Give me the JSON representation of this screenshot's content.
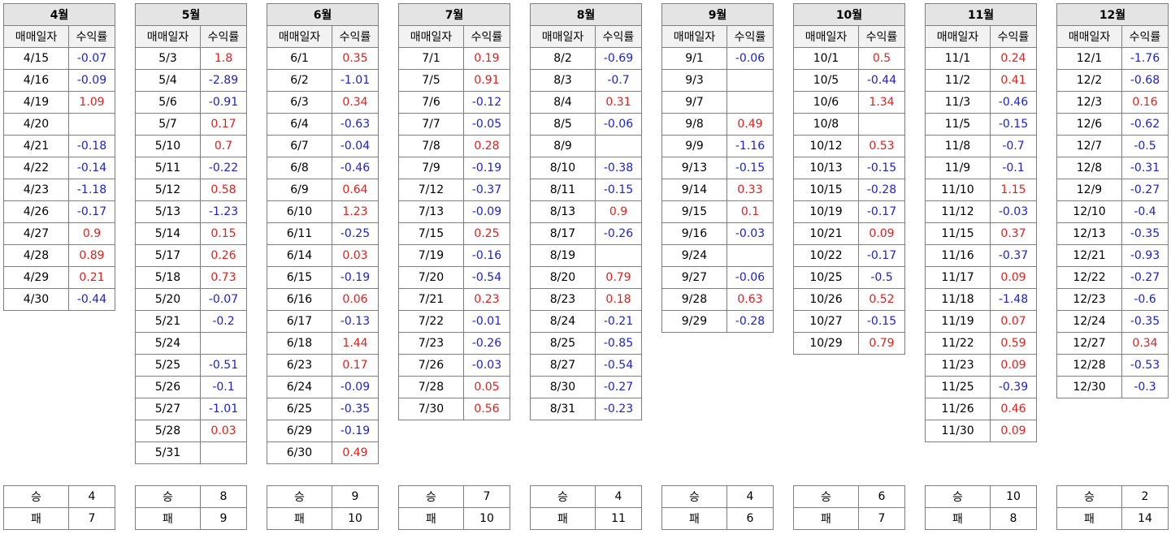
{
  "columns": {
    "date": "매매일자",
    "ret": "수익률"
  },
  "labels": {
    "win": "승",
    "loss": "패"
  },
  "colors": {
    "positive": "#e0201c",
    "negative": "#1c22d4",
    "title_bg": "#e4e4e4",
    "header_bg": "#f2f2f2"
  },
  "months": [
    {
      "title": "4월",
      "win": "4",
      "loss": "7",
      "rows": [
        [
          "4/15",
          "-0.07"
        ],
        [
          "4/16",
          "-0.09"
        ],
        [
          "4/19",
          "1.09"
        ],
        [
          "4/20",
          ""
        ],
        [
          "4/21",
          "-0.18"
        ],
        [
          "4/22",
          "-0.14"
        ],
        [
          "4/23",
          "-1.18"
        ],
        [
          "4/26",
          "-0.17"
        ],
        [
          "4/27",
          "0.9"
        ],
        [
          "4/28",
          "0.89"
        ],
        [
          "4/29",
          "0.21"
        ],
        [
          "4/30",
          "-0.44"
        ]
      ]
    },
    {
      "title": "5월",
      "win": "8",
      "loss": "9",
      "rows": [
        [
          "5/3",
          "1.8"
        ],
        [
          "5/4",
          "-2.89"
        ],
        [
          "5/6",
          "-0.91"
        ],
        [
          "5/7",
          "0.17"
        ],
        [
          "5/10",
          "0.7"
        ],
        [
          "5/11",
          "-0.22"
        ],
        [
          "5/12",
          "0.58"
        ],
        [
          "5/13",
          "-1.23"
        ],
        [
          "5/14",
          "0.15"
        ],
        [
          "5/17",
          "0.26"
        ],
        [
          "5/18",
          "0.73"
        ],
        [
          "5/20",
          "-0.07"
        ],
        [
          "5/21",
          "-0.2"
        ],
        [
          "5/24",
          ""
        ],
        [
          "5/25",
          "-0.51"
        ],
        [
          "5/26",
          "-0.1"
        ],
        [
          "5/27",
          "-1.01"
        ],
        [
          "5/28",
          "0.03"
        ],
        [
          "5/31",
          ""
        ]
      ]
    },
    {
      "title": "6월",
      "win": "9",
      "loss": "10",
      "rows": [
        [
          "6/1",
          "0.35"
        ],
        [
          "6/2",
          "-1.01"
        ],
        [
          "6/3",
          "0.34"
        ],
        [
          "6/4",
          "-0.63"
        ],
        [
          "6/7",
          "-0.04"
        ],
        [
          "6/8",
          "-0.46"
        ],
        [
          "6/9",
          "0.64"
        ],
        [
          "6/10",
          "1.23"
        ],
        [
          "6/11",
          "-0.25"
        ],
        [
          "6/14",
          "0.03"
        ],
        [
          "6/15",
          "-0.19"
        ],
        [
          "6/16",
          "0.06"
        ],
        [
          "6/17",
          "-0.13"
        ],
        [
          "6/18",
          "1.44"
        ],
        [
          "6/23",
          "0.17"
        ],
        [
          "6/24",
          "-0.09"
        ],
        [
          "6/25",
          "-0.35"
        ],
        [
          "6/29",
          "-0.19"
        ],
        [
          "6/30",
          "0.49"
        ]
      ]
    },
    {
      "title": "7월",
      "win": "7",
      "loss": "10",
      "rows": [
        [
          "7/1",
          "0.19"
        ],
        [
          "7/5",
          "0.91"
        ],
        [
          "7/6",
          "-0.12"
        ],
        [
          "7/7",
          "-0.05"
        ],
        [
          "7/8",
          "0.28"
        ],
        [
          "7/9",
          "-0.19"
        ],
        [
          "7/12",
          "-0.37"
        ],
        [
          "7/13",
          "-0.09"
        ],
        [
          "7/15",
          "0.25"
        ],
        [
          "7/19",
          "-0.16"
        ],
        [
          "7/20",
          "-0.54"
        ],
        [
          "7/21",
          "0.23"
        ],
        [
          "7/22",
          "-0.01"
        ],
        [
          "7/23",
          "-0.26"
        ],
        [
          "7/26",
          "-0.03"
        ],
        [
          "7/28",
          "0.05"
        ],
        [
          "7/30",
          "0.56"
        ]
      ]
    },
    {
      "title": "8월",
      "win": "4",
      "loss": "11",
      "rows": [
        [
          "8/2",
          "-0.69"
        ],
        [
          "8/3",
          "-0.7"
        ],
        [
          "8/4",
          "0.31"
        ],
        [
          "8/5",
          "-0.06"
        ],
        [
          "8/9",
          ""
        ],
        [
          "8/10",
          "-0.38"
        ],
        [
          "8/11",
          "-0.15"
        ],
        [
          "8/13",
          "0.9"
        ],
        [
          "8/17",
          "-0.26"
        ],
        [
          "8/19",
          ""
        ],
        [
          "8/20",
          "0.79"
        ],
        [
          "8/23",
          "0.18"
        ],
        [
          "8/24",
          "-0.21"
        ],
        [
          "8/25",
          "-0.85"
        ],
        [
          "8/27",
          "-0.54"
        ],
        [
          "8/30",
          "-0.27"
        ],
        [
          "8/31",
          "-0.23"
        ]
      ]
    },
    {
      "title": "9월",
      "win": "4",
      "loss": "6",
      "rows": [
        [
          "9/1",
          "-0.06"
        ],
        [
          "9/3",
          ""
        ],
        [
          "9/7",
          ""
        ],
        [
          "9/8",
          "0.49"
        ],
        [
          "9/9",
          "-1.16"
        ],
        [
          "9/13",
          "-0.15"
        ],
        [
          "9/14",
          "0.33"
        ],
        [
          "9/15",
          "0.1"
        ],
        [
          "9/16",
          "-0.03"
        ],
        [
          "9/24",
          ""
        ],
        [
          "9/27",
          "-0.06"
        ],
        [
          "9/28",
          "0.63"
        ],
        [
          "9/29",
          "-0.28"
        ]
      ]
    },
    {
      "title": "10월",
      "win": "6",
      "loss": "7",
      "rows": [
        [
          "10/1",
          "0.5"
        ],
        [
          "10/5",
          "-0.44"
        ],
        [
          "10/6",
          "1.34"
        ],
        [
          "10/8",
          ""
        ],
        [
          "10/12",
          "0.53"
        ],
        [
          "10/13",
          "-0.15"
        ],
        [
          "10/15",
          "-0.28"
        ],
        [
          "10/19",
          "-0.17"
        ],
        [
          "10/21",
          "0.09"
        ],
        [
          "10/22",
          "-0.17"
        ],
        [
          "10/25",
          "-0.5"
        ],
        [
          "10/26",
          "0.52"
        ],
        [
          "10/27",
          "-0.15"
        ],
        [
          "10/29",
          "0.79"
        ]
      ]
    },
    {
      "title": "11월",
      "win": "10",
      "loss": "8",
      "rows": [
        [
          "11/1",
          "0.24"
        ],
        [
          "11/2",
          "0.41"
        ],
        [
          "11/3",
          "-0.46"
        ],
        [
          "11/5",
          "-0.15"
        ],
        [
          "11/8",
          "-0.7"
        ],
        [
          "11/9",
          "-0.1"
        ],
        [
          "11/10",
          "1.15"
        ],
        [
          "11/12",
          "-0.03"
        ],
        [
          "11/15",
          "0.37"
        ],
        [
          "11/16",
          "-0.37"
        ],
        [
          "11/17",
          "0.09"
        ],
        [
          "11/18",
          "-1.48"
        ],
        [
          "11/19",
          "0.07"
        ],
        [
          "11/22",
          "0.59"
        ],
        [
          "11/23",
          "0.09"
        ],
        [
          "11/25",
          "-0.39"
        ],
        [
          "11/26",
          "0.46"
        ],
        [
          "11/30",
          "0.09"
        ]
      ]
    },
    {
      "title": "12월",
      "win": "2",
      "loss": "14",
      "rows": [
        [
          "12/1",
          "-1.76"
        ],
        [
          "12/2",
          "-0.68"
        ],
        [
          "12/3",
          "0.16"
        ],
        [
          "12/6",
          "-0.62"
        ],
        [
          "12/7",
          "-0.5"
        ],
        [
          "12/8",
          "-0.31"
        ],
        [
          "12/9",
          "-0.27"
        ],
        [
          "12/10",
          "-0.4"
        ],
        [
          "12/13",
          "-0.35"
        ],
        [
          "12/21",
          "-0.93"
        ],
        [
          "12/22",
          "-0.27"
        ],
        [
          "12/23",
          "-0.6"
        ],
        [
          "12/24",
          "-0.35"
        ],
        [
          "12/27",
          "0.34"
        ],
        [
          "12/28",
          "-0.53"
        ],
        [
          "12/30",
          "-0.3"
        ]
      ]
    }
  ]
}
